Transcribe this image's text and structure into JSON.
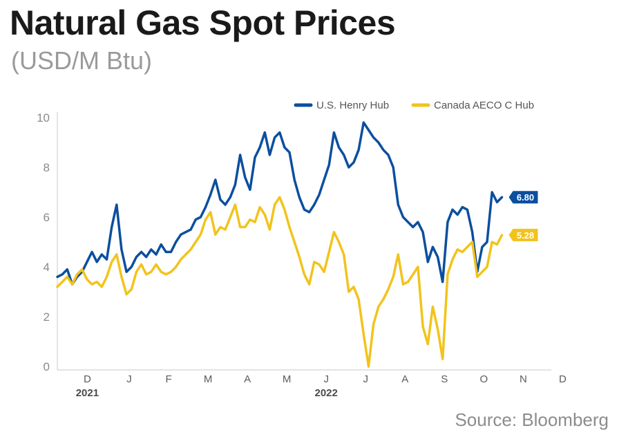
{
  "title": "Natural Gas Spot Prices",
  "subtitle": "(USD/M Btu)",
  "source": "Source: Bloomberg",
  "chart_data": {
    "type": "line",
    "ylim": [
      0,
      10
    ],
    "yticks": [
      0,
      2,
      4,
      6,
      8,
      10
    ],
    "xlim": [
      0,
      100
    ],
    "x_month_labels": [
      {
        "label": "D",
        "x": 3
      },
      {
        "label": "J",
        "x": 11.5
      },
      {
        "label": "F",
        "x": 19.5
      },
      {
        "label": "M",
        "x": 27.5
      },
      {
        "label": "A",
        "x": 35.5
      },
      {
        "label": "M",
        "x": 43.5
      },
      {
        "label": "J",
        "x": 51.5
      },
      {
        "label": "J",
        "x": 59.5
      },
      {
        "label": "A",
        "x": 67.5
      },
      {
        "label": "S",
        "x": 75.5
      },
      {
        "label": "O",
        "x": 83.5
      },
      {
        "label": "N",
        "x": 91.5
      },
      {
        "label": "D",
        "x": 99.5
      }
    ],
    "x_year_labels": [
      {
        "label": "2021",
        "x": 3
      },
      {
        "label": "2022",
        "x": 51.5
      }
    ],
    "legend_position": "top-right",
    "series": [
      {
        "name": "U.S. Henry Hub",
        "color": "#0b4f9e",
        "end_value": "6.80",
        "points": [
          [
            0,
            3.6
          ],
          [
            1,
            3.7
          ],
          [
            2,
            3.9
          ],
          [
            3,
            3.3
          ],
          [
            4,
            3.6
          ],
          [
            5,
            3.8
          ],
          [
            6,
            4.2
          ],
          [
            7,
            4.6
          ],
          [
            8,
            4.2
          ],
          [
            9,
            4.5
          ],
          [
            10,
            4.3
          ],
          [
            11,
            5.6
          ],
          [
            12,
            6.5
          ],
          [
            13,
            4.7
          ],
          [
            14,
            3.8
          ],
          [
            15,
            4.0
          ],
          [
            16,
            4.4
          ],
          [
            17,
            4.6
          ],
          [
            18,
            4.4
          ],
          [
            19,
            4.7
          ],
          [
            20,
            4.5
          ],
          [
            21,
            4.9
          ],
          [
            22,
            4.6
          ],
          [
            23,
            4.6
          ],
          [
            24,
            5.0
          ],
          [
            25,
            5.3
          ],
          [
            26,
            5.4
          ],
          [
            27,
            5.5
          ],
          [
            28,
            5.9
          ],
          [
            29,
            6.0
          ],
          [
            30,
            6.4
          ],
          [
            31,
            6.9
          ],
          [
            32,
            7.5
          ],
          [
            33,
            6.7
          ],
          [
            34,
            6.5
          ],
          [
            35,
            6.8
          ],
          [
            36,
            7.3
          ],
          [
            37,
            8.5
          ],
          [
            38,
            7.6
          ],
          [
            39,
            7.1
          ],
          [
            40,
            8.4
          ],
          [
            41,
            8.8
          ],
          [
            42,
            9.4
          ],
          [
            43,
            8.5
          ],
          [
            44,
            9.2
          ],
          [
            45,
            9.4
          ],
          [
            46,
            8.8
          ],
          [
            47,
            8.6
          ],
          [
            48,
            7.5
          ],
          [
            49,
            6.8
          ],
          [
            50,
            6.3
          ],
          [
            51,
            6.2
          ],
          [
            52,
            6.5
          ],
          [
            53,
            6.9
          ],
          [
            54,
            7.5
          ],
          [
            55,
            8.1
          ],
          [
            56,
            9.4
          ],
          [
            57,
            8.8
          ],
          [
            58,
            8.5
          ],
          [
            59,
            8.0
          ],
          [
            60,
            8.2
          ],
          [
            61,
            8.7
          ],
          [
            62,
            9.8
          ],
          [
            63,
            9.5
          ],
          [
            64,
            9.2
          ],
          [
            65,
            9.0
          ],
          [
            66,
            8.7
          ],
          [
            67,
            8.5
          ],
          [
            68,
            8.0
          ],
          [
            69,
            6.5
          ],
          [
            70,
            6.0
          ],
          [
            71,
            5.8
          ],
          [
            72,
            5.6
          ],
          [
            73,
            5.8
          ],
          [
            74,
            5.4
          ],
          [
            75,
            4.2
          ],
          [
            76,
            4.8
          ],
          [
            77,
            4.4
          ],
          [
            78,
            3.4
          ],
          [
            79,
            5.8
          ],
          [
            80,
            6.3
          ],
          [
            81,
            6.1
          ],
          [
            82,
            6.4
          ],
          [
            83,
            6.3
          ],
          [
            84,
            5.4
          ],
          [
            85,
            3.8
          ],
          [
            86,
            4.8
          ],
          [
            87,
            5.0
          ],
          [
            88,
            7.0
          ],
          [
            89,
            6.6
          ],
          [
            90,
            6.8
          ]
        ]
      },
      {
        "name": "Canada AECO C Hub",
        "color": "#f2c31c",
        "end_value": "5.28",
        "points": [
          [
            0,
            3.2
          ],
          [
            1,
            3.4
          ],
          [
            2,
            3.6
          ],
          [
            3,
            3.3
          ],
          [
            4,
            3.7
          ],
          [
            5,
            3.9
          ],
          [
            6,
            3.5
          ],
          [
            7,
            3.3
          ],
          [
            8,
            3.4
          ],
          [
            9,
            3.2
          ],
          [
            10,
            3.6
          ],
          [
            11,
            4.2
          ],
          [
            12,
            4.5
          ],
          [
            13,
            3.6
          ],
          [
            14,
            2.9
          ],
          [
            15,
            3.1
          ],
          [
            16,
            3.8
          ],
          [
            17,
            4.1
          ],
          [
            18,
            3.7
          ],
          [
            19,
            3.8
          ],
          [
            20,
            4.1
          ],
          [
            21,
            3.8
          ],
          [
            22,
            3.7
          ],
          [
            23,
            3.8
          ],
          [
            24,
            4.0
          ],
          [
            25,
            4.3
          ],
          [
            26,
            4.5
          ],
          [
            27,
            4.7
          ],
          [
            28,
            5.0
          ],
          [
            29,
            5.3
          ],
          [
            30,
            5.9
          ],
          [
            31,
            6.2
          ],
          [
            32,
            5.3
          ],
          [
            33,
            5.6
          ],
          [
            34,
            5.5
          ],
          [
            35,
            6.0
          ],
          [
            36,
            6.5
          ],
          [
            37,
            5.6
          ],
          [
            38,
            5.6
          ],
          [
            39,
            5.9
          ],
          [
            40,
            5.8
          ],
          [
            41,
            6.4
          ],
          [
            42,
            6.1
          ],
          [
            43,
            5.5
          ],
          [
            44,
            6.5
          ],
          [
            45,
            6.8
          ],
          [
            46,
            6.3
          ],
          [
            47,
            5.6
          ],
          [
            48,
            5.0
          ],
          [
            49,
            4.4
          ],
          [
            50,
            3.7
          ],
          [
            51,
            3.3
          ],
          [
            52,
            4.2
          ],
          [
            53,
            4.1
          ],
          [
            54,
            3.8
          ],
          [
            55,
            4.6
          ],
          [
            56,
            5.4
          ],
          [
            57,
            5.0
          ],
          [
            58,
            4.5
          ],
          [
            59,
            3.0
          ],
          [
            60,
            3.2
          ],
          [
            61,
            2.7
          ],
          [
            62,
            1.3
          ],
          [
            63,
            0.0
          ],
          [
            64,
            1.7
          ],
          [
            65,
            2.4
          ],
          [
            66,
            2.7
          ],
          [
            67,
            3.1
          ],
          [
            68,
            3.6
          ],
          [
            69,
            4.5
          ],
          [
            70,
            3.3
          ],
          [
            71,
            3.4
          ],
          [
            72,
            3.7
          ],
          [
            73,
            4.0
          ],
          [
            74,
            1.6
          ],
          [
            75,
            0.9
          ],
          [
            76,
            2.4
          ],
          [
            77,
            1.5
          ],
          [
            78,
            0.3
          ],
          [
            79,
            3.7
          ],
          [
            80,
            4.3
          ],
          [
            81,
            4.7
          ],
          [
            82,
            4.6
          ],
          [
            83,
            4.8
          ],
          [
            84,
            5.0
          ],
          [
            85,
            3.6
          ],
          [
            86,
            3.8
          ],
          [
            87,
            4.0
          ],
          [
            88,
            5.0
          ],
          [
            89,
            4.9
          ],
          [
            90,
            5.28
          ]
        ]
      }
    ]
  }
}
